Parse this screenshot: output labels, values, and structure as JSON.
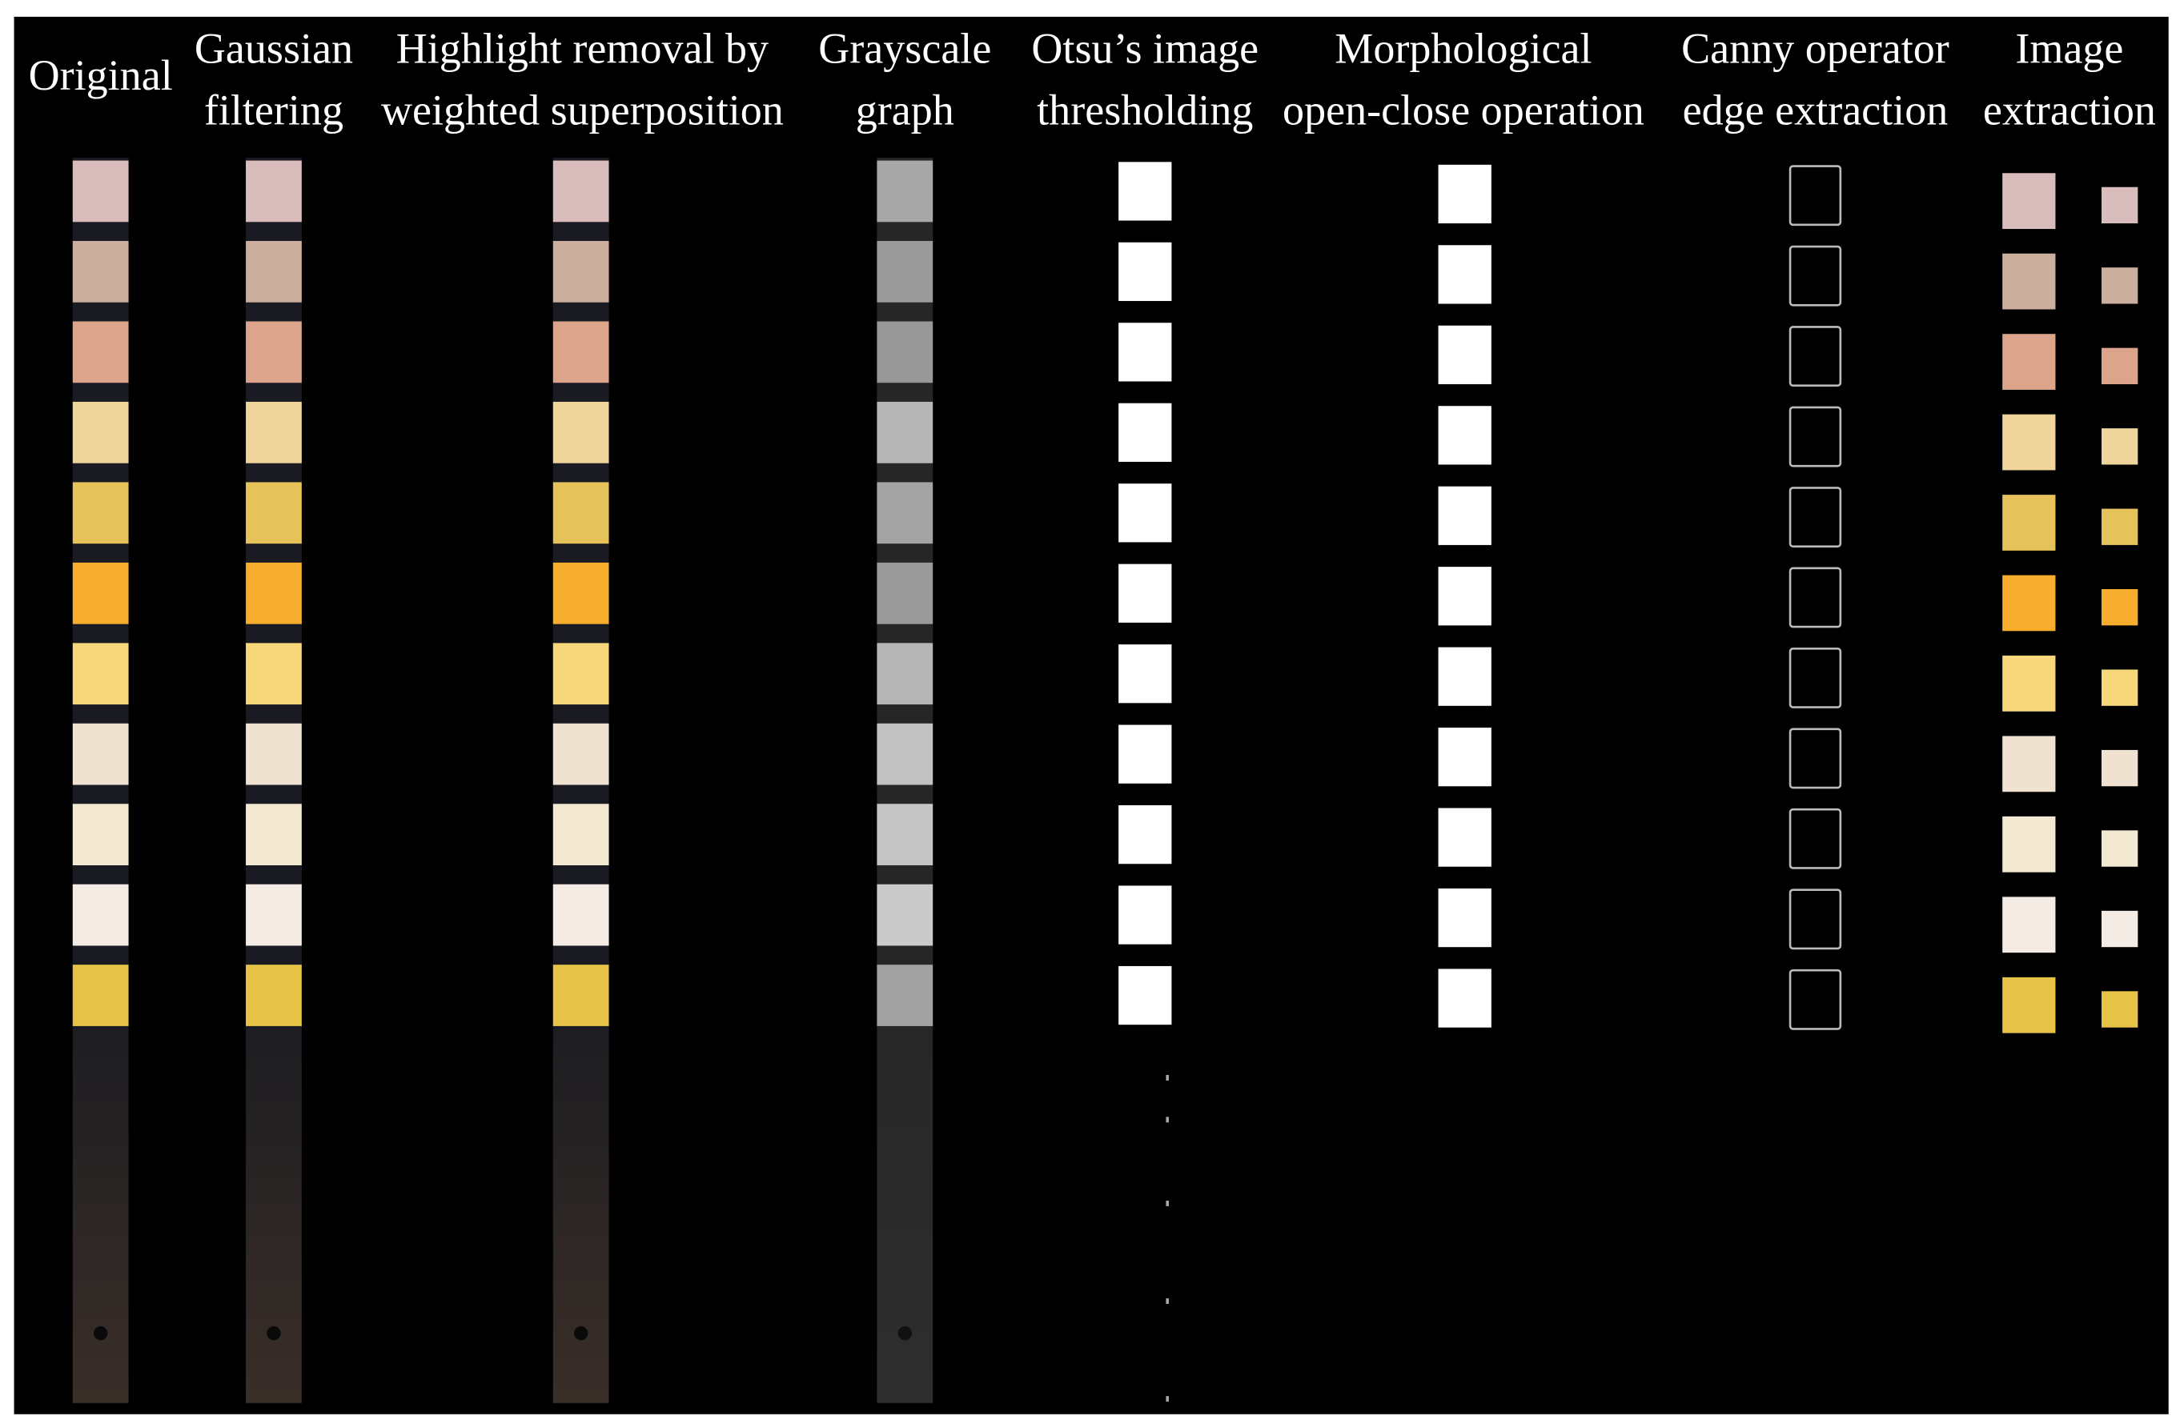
{
  "columns": [
    {
      "title": [
        "Original"
      ]
    },
    {
      "title": [
        "Gaussian",
        "filtering"
      ]
    },
    {
      "title": [
        "Highlight removal by",
        "weighted superposition"
      ]
    },
    {
      "title": [
        "Grayscale",
        "graph"
      ]
    },
    {
      "title": [
        "Otsu’s image",
        "thresholding"
      ]
    },
    {
      "title": [
        "Morphological",
        "open-close operation"
      ]
    },
    {
      "title": [
        "Canny operator",
        "edge extraction"
      ]
    },
    {
      "title": [
        "Image",
        "extraction"
      ]
    }
  ]
}
